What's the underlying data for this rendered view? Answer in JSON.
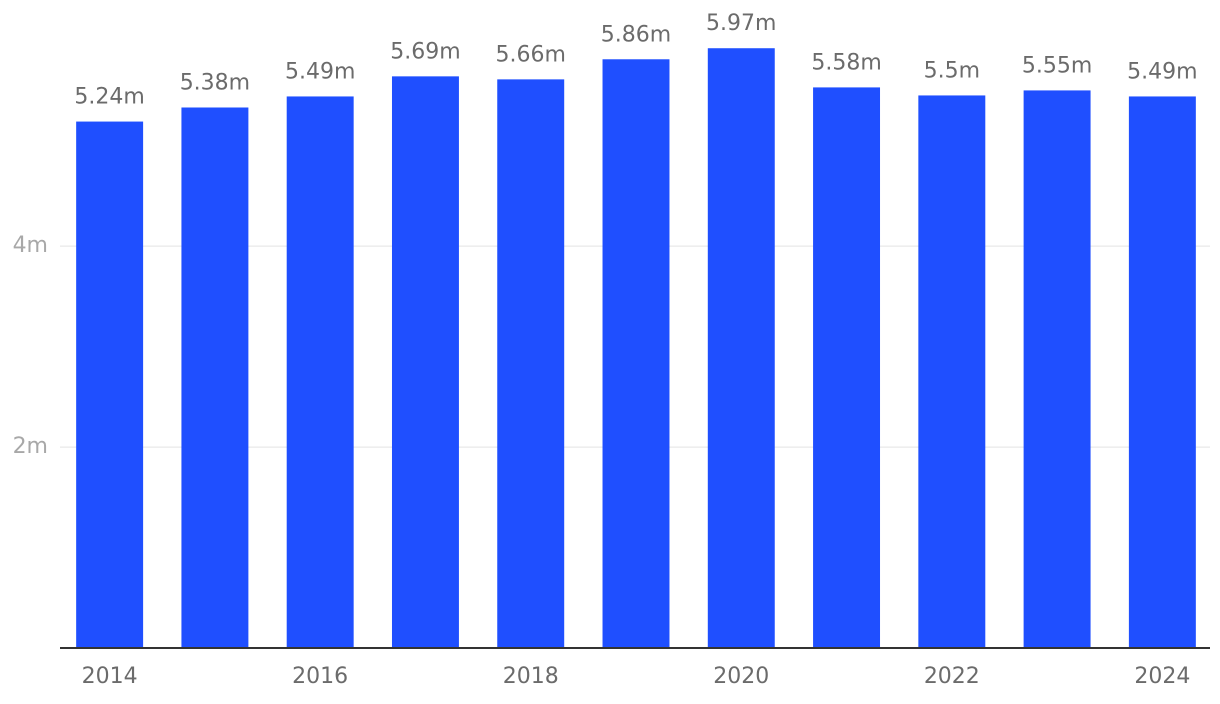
{
  "chart_data": {
    "type": "bar",
    "categories": [
      "2014",
      null,
      "2016",
      null,
      "2018",
      null,
      "2020",
      null,
      "2022",
      null,
      "2024"
    ],
    "values": [
      5.24,
      5.38,
      5.49,
      5.69,
      5.66,
      5.86,
      5.97,
      5.58,
      5.5,
      5.55,
      5.49
    ],
    "value_labels": [
      "5.24m",
      "5.38m",
      "5.49m",
      "5.69m",
      "5.66m",
      "5.86m",
      "5.97m",
      "5.58m",
      "5.5m",
      "5.55m",
      "5.49m"
    ],
    "color": "#1f4fff",
    "ylim": [
      0,
      6.45
    ],
    "yticks": [
      {
        "value": 2,
        "label": "2m"
      },
      {
        "value": 4,
        "label": "4m"
      }
    ],
    "grid": true
  }
}
